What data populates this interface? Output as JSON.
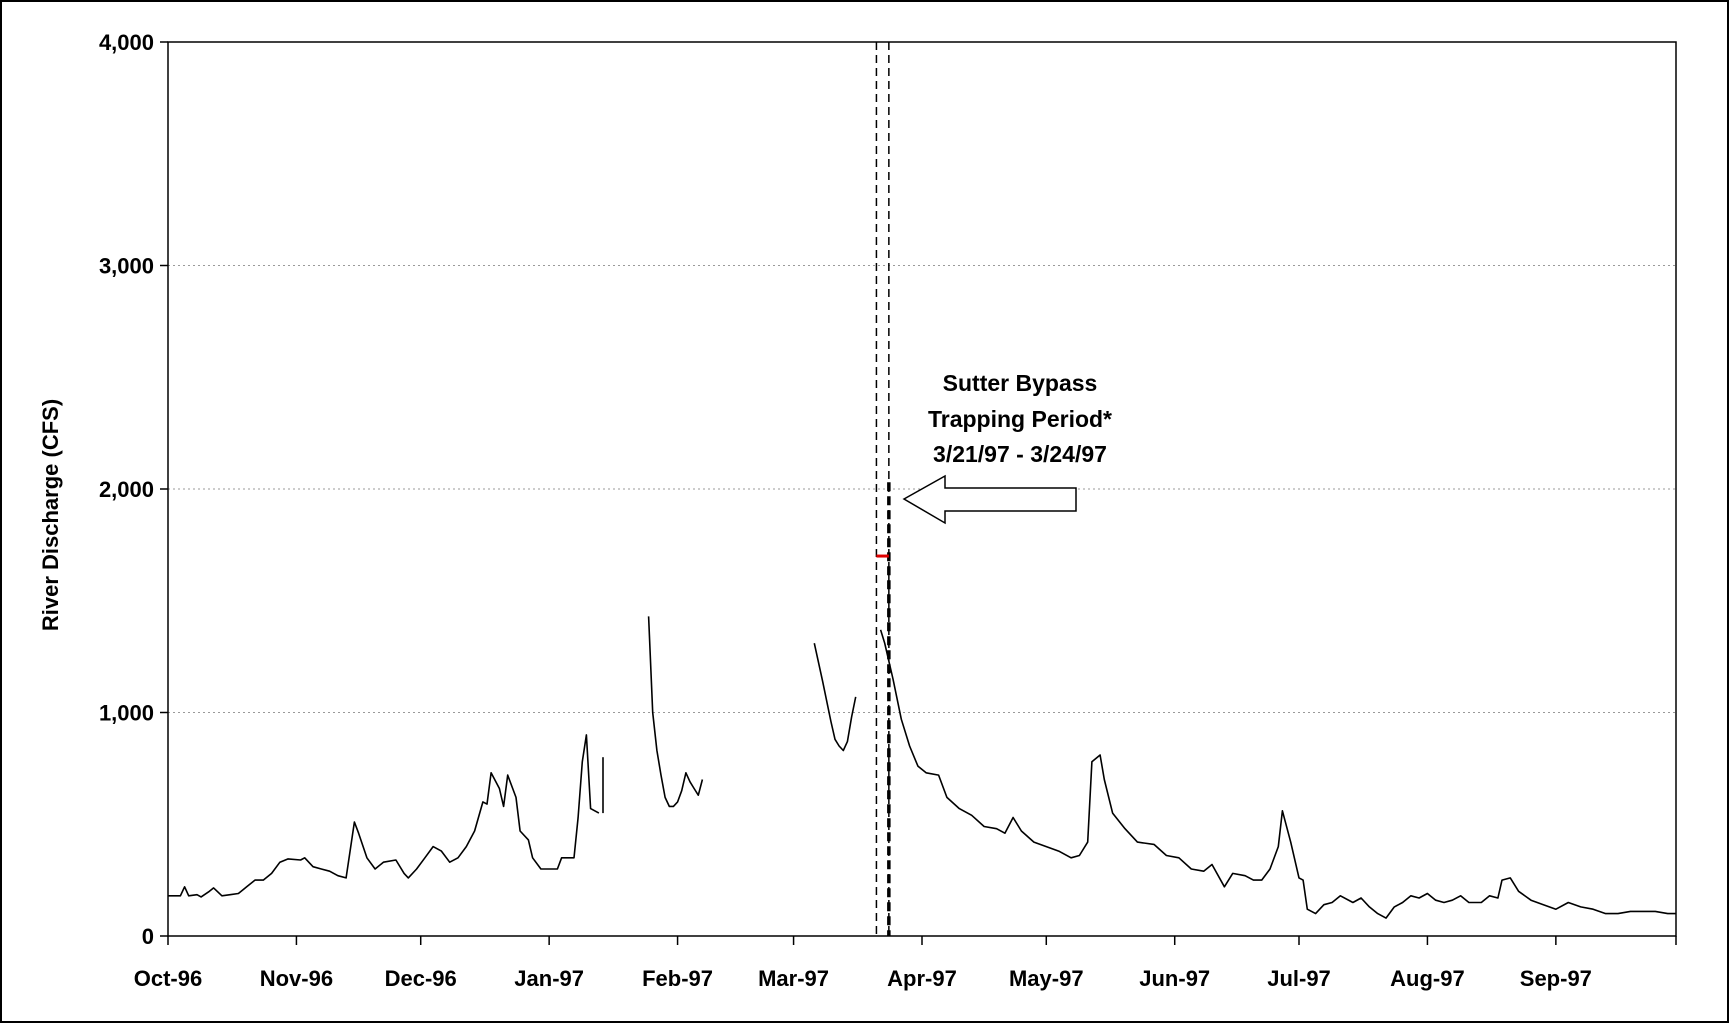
{
  "chart_data": {
    "type": "line",
    "title": "",
    "xlabel": "",
    "ylabel": "River Discharge (CFS)",
    "ylim": [
      0,
      4000
    ],
    "yticks": [
      0,
      1000,
      2000,
      3000,
      4000
    ],
    "ytick_labels": [
      "0",
      "1,000",
      "2,000",
      "3,000",
      "4,000"
    ],
    "xlim": [
      "1996-10-01",
      "1997-09-30"
    ],
    "xticks": [
      "1996-10-01",
      "1996-11-01",
      "1996-12-01",
      "1997-01-01",
      "1997-02-01",
      "1997-03-01",
      "1997-04-01",
      "1997-05-01",
      "1997-06-01",
      "1997-07-01",
      "1997-08-01",
      "1997-09-01"
    ],
    "xtick_labels": [
      "Oct-96",
      "Nov-96",
      "Dec-96",
      "Jan-97",
      "Feb-97",
      "Mar-97",
      "Apr-97",
      "May-97",
      "Jun-97",
      "Jul-97",
      "Aug-97",
      "Sep-97"
    ],
    "grid": "horizontal dotted",
    "series": [
      {
        "name": "",
        "color": "#000000",
        "segments": [
          [
            [
              "1996-10-01",
              180
            ],
            [
              "1996-10-04",
              180
            ],
            [
              "1996-10-05",
              220
            ],
            [
              "1996-10-06",
              180
            ],
            [
              "1996-10-08",
              185
            ],
            [
              "1996-10-09",
              175
            ],
            [
              "1996-10-11",
              200
            ],
            [
              "1996-10-12",
              215
            ],
            [
              "1996-10-14",
              180
            ],
            [
              "1996-10-16",
              185
            ],
            [
              "1996-10-18",
              190
            ],
            [
              "1996-10-20",
              220
            ],
            [
              "1996-10-22",
              250
            ],
            [
              "1996-10-24",
              250
            ],
            [
              "1996-10-26",
              280
            ],
            [
              "1996-10-28",
              330
            ],
            [
              "1996-10-30",
              345
            ],
            [
              "1996-11-02",
              340
            ],
            [
              "1996-11-03",
              350
            ],
            [
              "1996-11-05",
              310
            ],
            [
              "1996-11-07",
              300
            ],
            [
              "1996-11-09",
              290
            ],
            [
              "1996-11-11",
              270
            ],
            [
              "1996-11-13",
              260
            ],
            [
              "1996-11-15",
              510
            ],
            [
              "1996-11-16",
              460
            ],
            [
              "1996-11-18",
              350
            ],
            [
              "1996-11-20",
              300
            ],
            [
              "1996-11-22",
              330
            ],
            [
              "1996-11-25",
              340
            ],
            [
              "1996-11-27",
              280
            ],
            [
              "1996-11-28",
              260
            ],
            [
              "1996-11-30",
              300
            ],
            [
              "1996-12-02",
              350
            ],
            [
              "1996-12-04",
              400
            ],
            [
              "1996-12-06",
              380
            ],
            [
              "1996-12-08",
              330
            ],
            [
              "1996-12-10",
              350
            ],
            [
              "1996-12-12",
              400
            ],
            [
              "1996-12-14",
              470
            ],
            [
              "1996-12-16",
              600
            ],
            [
              "1996-12-17",
              590
            ],
            [
              "1996-12-18",
              730
            ],
            [
              "1996-12-20",
              660
            ],
            [
              "1996-12-21",
              580
            ],
            [
              "1996-12-22",
              720
            ],
            [
              "1996-12-24",
              620
            ],
            [
              "1996-12-25",
              470
            ],
            [
              "1996-12-27",
              430
            ],
            [
              "1996-12-28",
              350
            ],
            [
              "1996-12-30",
              300
            ],
            [
              "1997-01-01",
              300
            ],
            [
              "1997-01-03",
              300
            ],
            [
              "1997-01-04",
              350
            ],
            [
              "1997-01-05",
              350
            ],
            [
              "1997-01-06",
              350
            ],
            [
              "1997-01-07",
              350
            ],
            [
              "1997-01-08",
              530
            ],
            [
              "1997-01-09",
              780
            ],
            [
              "1997-01-10",
              900
            ],
            [
              "1997-01-11",
              570
            ],
            [
              "1997-01-13",
              550
            ]
          ],
          [
            [
              "1997-01-14",
              550
            ],
            [
              "1997-01-14",
              800
            ]
          ],
          [
            [
              "1997-01-25",
              1430
            ],
            [
              "1997-01-26",
              1000
            ],
            [
              "1997-01-27",
              830
            ],
            [
              "1997-01-28",
              720
            ],
            [
              "1997-01-29",
              620
            ],
            [
              "1997-01-30",
              580
            ],
            [
              "1997-01-31",
              580
            ],
            [
              "1997-02-01",
              600
            ],
            [
              "1997-02-02",
              650
            ],
            [
              "1997-02-03",
              730
            ],
            [
              "1997-02-04",
              690
            ],
            [
              "1997-02-05",
              660
            ],
            [
              "1997-02-06",
              630
            ],
            [
              "1997-02-07",
              700
            ]
          ],
          [
            [
              "1997-03-06",
              1310
            ],
            [
              "1997-03-08",
              1140
            ],
            [
              "1997-03-10",
              960
            ],
            [
              "1997-03-11",
              880
            ],
            [
              "1997-03-12",
              850
            ],
            [
              "1997-03-13",
              830
            ],
            [
              "1997-03-14",
              870
            ],
            [
              "1997-03-15",
              980
            ],
            [
              "1997-03-16",
              1070
            ]
          ],
          [
            [
              "1997-03-22",
              1370
            ],
            [
              "1997-03-23",
              1310
            ],
            [
              "1997-03-25",
              1150
            ],
            [
              "1997-03-27",
              970
            ],
            [
              "1997-03-29",
              850
            ],
            [
              "1997-03-31",
              760
            ],
            [
              "1997-04-02",
              730
            ],
            [
              "1997-04-05",
              720
            ],
            [
              "1997-04-07",
              620
            ],
            [
              "1997-04-10",
              570
            ],
            [
              "1997-04-13",
              540
            ],
            [
              "1997-04-16",
              490
            ],
            [
              "1997-04-19",
              480
            ],
            [
              "1997-04-21",
              460
            ],
            [
              "1997-04-23",
              530
            ],
            [
              "1997-04-25",
              470
            ],
            [
              "1997-04-28",
              420
            ],
            [
              "1997-05-01",
              400
            ],
            [
              "1997-05-04",
              380
            ],
            [
              "1997-05-07",
              350
            ],
            [
              "1997-05-09",
              360
            ],
            [
              "1997-05-11",
              420
            ],
            [
              "1997-05-12",
              780
            ],
            [
              "1997-05-14",
              810
            ],
            [
              "1997-05-15",
              700
            ],
            [
              "1997-05-17",
              550
            ],
            [
              "1997-05-20",
              480
            ],
            [
              "1997-05-23",
              420
            ],
            [
              "1997-05-27",
              410
            ],
            [
              "1997-05-30",
              360
            ],
            [
              "1997-06-02",
              350
            ],
            [
              "1997-06-05",
              300
            ],
            [
              "1997-06-08",
              290
            ],
            [
              "1997-06-10",
              320
            ],
            [
              "1997-06-13",
              220
            ],
            [
              "1997-06-15",
              280
            ],
            [
              "1997-06-18",
              270
            ],
            [
              "1997-06-20",
              250
            ],
            [
              "1997-06-22",
              250
            ],
            [
              "1997-06-24",
              300
            ],
            [
              "1997-06-26",
              400
            ],
            [
              "1997-06-27",
              560
            ],
            [
              "1997-06-29",
              420
            ],
            [
              "1997-07-01",
              260
            ],
            [
              "1997-07-02",
              250
            ],
            [
              "1997-07-03",
              120
            ],
            [
              "1997-07-05",
              100
            ],
            [
              "1997-07-07",
              140
            ],
            [
              "1997-07-09",
              150
            ],
            [
              "1997-07-11",
              180
            ],
            [
              "1997-07-14",
              150
            ],
            [
              "1997-07-16",
              170
            ],
            [
              "1997-07-18",
              130
            ],
            [
              "1997-07-20",
              100
            ],
            [
              "1997-07-22",
              80
            ],
            [
              "1997-07-24",
              130
            ],
            [
              "1997-07-26",
              150
            ],
            [
              "1997-07-28",
              180
            ],
            [
              "1997-07-30",
              170
            ],
            [
              "1997-08-01",
              190
            ],
            [
              "1997-08-03",
              160
            ],
            [
              "1997-08-05",
              150
            ],
            [
              "1997-08-07",
              160
            ],
            [
              "1997-08-09",
              180
            ],
            [
              "1997-08-11",
              150
            ],
            [
              "1997-08-14",
              150
            ],
            [
              "1997-08-16",
              180
            ],
            [
              "1997-08-18",
              170
            ],
            [
              "1997-08-19",
              250
            ],
            [
              "1997-08-21",
              260
            ],
            [
              "1997-08-23",
              200
            ],
            [
              "1997-08-26",
              160
            ],
            [
              "1997-08-29",
              140
            ],
            [
              "1997-09-01",
              120
            ],
            [
              "1997-09-04",
              150
            ],
            [
              "1997-09-07",
              130
            ],
            [
              "1997-09-10",
              120
            ],
            [
              "1997-09-13",
              100
            ],
            [
              "1997-09-16",
              100
            ],
            [
              "1997-09-19",
              110
            ],
            [
              "1997-09-22",
              110
            ],
            [
              "1997-09-25",
              110
            ],
            [
              "1997-09-28",
              100
            ],
            [
              "1997-09-30",
              100
            ]
          ]
        ]
      }
    ],
    "vertical_lines": [
      {
        "x": "1997-03-21",
        "style": "dashed",
        "weight": "thin"
      },
      {
        "x": "1997-03-24",
        "style": "dashed",
        "weight": "thin"
      },
      {
        "x": "1997-03-24",
        "style": "dashed",
        "weight": "thick",
        "y_to": 2030
      }
    ],
    "marker": {
      "x_from": "1997-03-21",
      "x_to": "1997-03-24",
      "y": 1700,
      "color": "#e00000"
    },
    "annotation": {
      "lines": [
        "Sutter Bypass",
        "Trapping Period*",
        "3/21/97 - 3/24/97"
      ],
      "arrow_direction": "left"
    }
  }
}
